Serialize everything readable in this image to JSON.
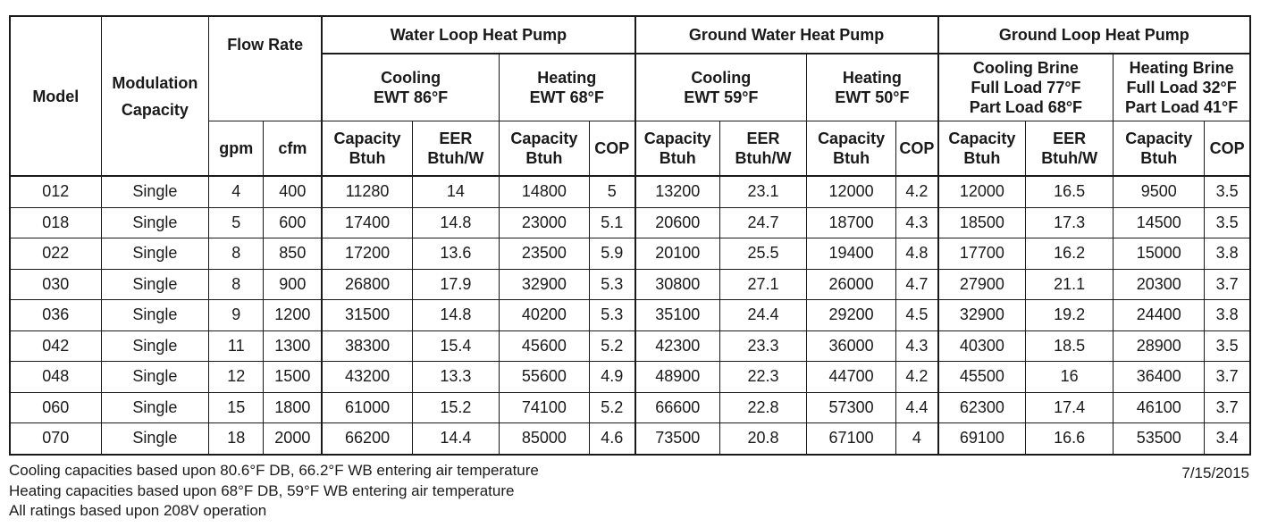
{
  "headers": {
    "model": "Model",
    "modulation": [
      "Modulation",
      "Capacity"
    ],
    "flow_rate": "Flow Rate",
    "gpm": "gpm",
    "cfm": "cfm",
    "groups": [
      "Water Loop Heat Pump",
      "Ground Water Heat Pump",
      "Ground Loop Heat Pump"
    ],
    "subgroups": [
      [
        "Cooling",
        "EWT 86°F"
      ],
      [
        "Heating",
        "EWT 68°F"
      ],
      [
        "Cooling",
        "EWT 59°F"
      ],
      [
        "Heating",
        "EWT 50°F"
      ],
      [
        "Cooling Brine",
        "Full Load 77°F",
        "Part Load 68°F"
      ],
      [
        "Heating Brine",
        "Full Load 32°F",
        "Part Load 41°F"
      ]
    ],
    "cooling_cols": [
      [
        "Capacity",
        "Btuh"
      ],
      [
        "EER",
        "Btuh/W"
      ]
    ],
    "heating_cols": [
      [
        "Capacity",
        "Btuh"
      ],
      [
        "COP"
      ]
    ]
  },
  "rows": [
    [
      "012",
      "Single",
      "4",
      "400",
      "11280",
      "14",
      "14800",
      "5",
      "13200",
      "23.1",
      "12000",
      "4.2",
      "12000",
      "16.5",
      "9500",
      "3.5"
    ],
    [
      "018",
      "Single",
      "5",
      "600",
      "17400",
      "14.8",
      "23000",
      "5.1",
      "20600",
      "24.7",
      "18700",
      "4.3",
      "18500",
      "17.3",
      "14500",
      "3.5"
    ],
    [
      "022",
      "Single",
      "8",
      "850",
      "17200",
      "13.6",
      "23500",
      "5.9",
      "20100",
      "25.5",
      "19400",
      "4.8",
      "17700",
      "16.2",
      "15000",
      "3.8"
    ],
    [
      "030",
      "Single",
      "8",
      "900",
      "26800",
      "17.9",
      "32900",
      "5.3",
      "30800",
      "27.1",
      "26000",
      "4.7",
      "27900",
      "21.1",
      "20300",
      "3.7"
    ],
    [
      "036",
      "Single",
      "9",
      "1200",
      "31500",
      "14.8",
      "40200",
      "5.3",
      "35100",
      "24.4",
      "29200",
      "4.5",
      "32900",
      "19.2",
      "24400",
      "3.8"
    ],
    [
      "042",
      "Single",
      "11",
      "1300",
      "38300",
      "15.4",
      "45600",
      "5.2",
      "42300",
      "23.3",
      "36000",
      "4.3",
      "40300",
      "18.5",
      "28900",
      "3.5"
    ],
    [
      "048",
      "Single",
      "12",
      "1500",
      "43200",
      "13.3",
      "55600",
      "4.9",
      "48900",
      "22.3",
      "44700",
      "4.2",
      "45500",
      "16",
      "36400",
      "3.7"
    ],
    [
      "060",
      "Single",
      "15",
      "1800",
      "61000",
      "15.2",
      "74100",
      "5.2",
      "66600",
      "22.8",
      "57300",
      "4.4",
      "62300",
      "17.4",
      "46100",
      "3.7"
    ],
    [
      "070",
      "Single",
      "18",
      "2000",
      "66200",
      "14.4",
      "85000",
      "4.6",
      "73500",
      "20.8",
      "67100",
      "4",
      "69100",
      "16.6",
      "53500",
      "3.4"
    ]
  ],
  "notes": [
    "Cooling capacities based upon 80.6°F DB, 66.2°F WB entering air temperature",
    "Heating capacities based upon 68°F DB, 59°F WB entering air temperature",
    "All ratings based upon 208V operation"
  ],
  "date": "7/15/2015"
}
